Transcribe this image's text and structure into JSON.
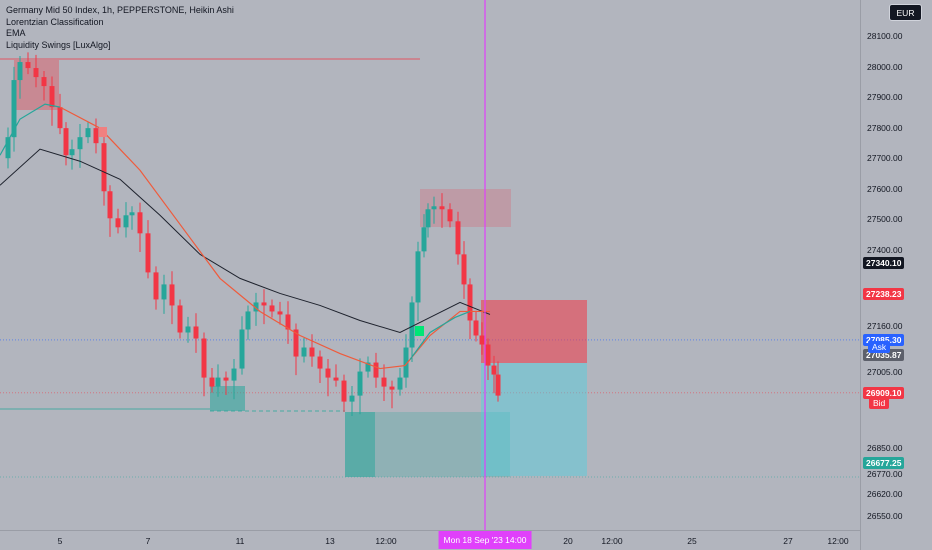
{
  "legend": {
    "title": "Germany Mid 50 Index, 1h, PEPPERSTONE, Heikin Ashi",
    "indicators": [
      "Lorentzian Classification",
      "EMA",
      "Liquidity Swings [LuxAlgo]"
    ]
  },
  "currency": "EUR",
  "price_ticks": [
    "28100.00",
    "28000.00",
    "27900.00",
    "27800.00",
    "27700.00",
    "27600.00",
    "27500.00",
    "27400.00",
    "27160.00",
    "27005.00",
    "26850.00",
    "26770.00",
    "26620.00",
    "26550.00"
  ],
  "price_badges": [
    {
      "value": "27340.10",
      "price": 27340.1,
      "bg": "#131722",
      "fg": "#ffffff"
    },
    {
      "value": "27238.23",
      "price": 27238.23,
      "bg": "#f23645",
      "fg": "#ffffff"
    },
    {
      "value": "27085.30",
      "price": 27085.3,
      "bg": "#2962ff",
      "fg": "#ffffff"
    },
    {
      "value": "27035.87",
      "price": 27035.87,
      "bg": "#5d606b",
      "fg": "#ffffff"
    },
    {
      "value": "26909.10",
      "price": 26909.1,
      "bg": "#f23645",
      "fg": "#ffffff"
    },
    {
      "value": "26677.25",
      "price": 26677.25,
      "bg": "#26a69a",
      "fg": "#ffffff"
    }
  ],
  "side_tags": {
    "ask": "Ask",
    "bid": "Bid"
  },
  "time_labels": [
    "5",
    "7",
    "11",
    "13",
    "12:00",
    "20",
    "12:00",
    "25",
    "27",
    "12:00"
  ],
  "crosshair_time": "Mon 18 Sep '23   14:00",
  "colors": {
    "up": "#26a69a",
    "down": "#f23645",
    "ema": "#ef5b3c",
    "ma": "#1e222d",
    "crosshair": "#e040fb"
  },
  "chart_data": {
    "type": "candlestick",
    "symbol": "Germany Mid 50 Index, 1h, PEPPERSTONE, Heikin Ashi",
    "ylim": [
      26500,
      28150
    ],
    "ask": 27085.3,
    "bid": 26909.1,
    "last_close": 26909.1
  }
}
